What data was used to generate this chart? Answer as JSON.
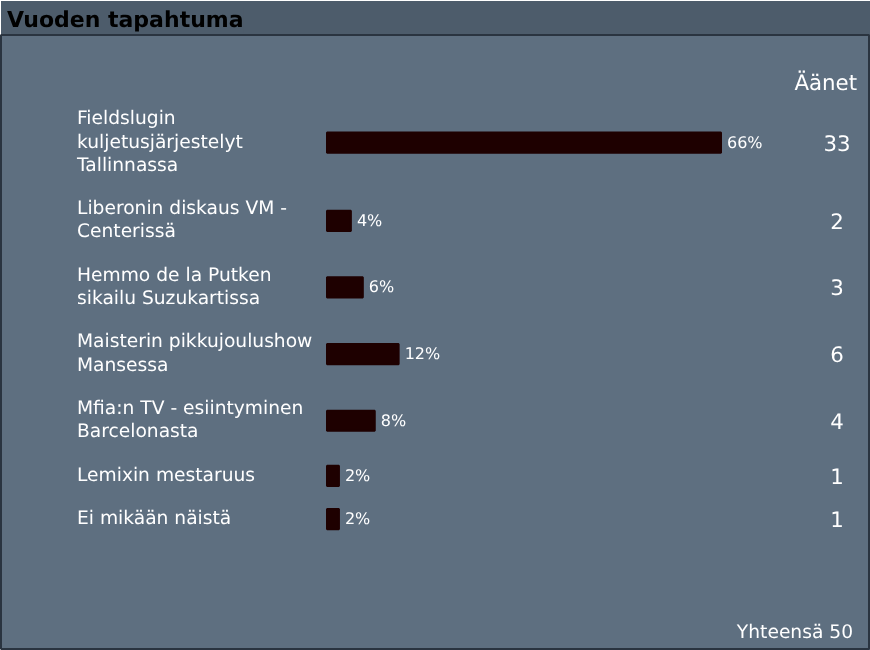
{
  "chart_data": {
    "type": "bar",
    "orientation": "horizontal",
    "title": "Vuoden tapahtuma",
    "categories": [
      "Fieldslugin kuljetusjärjestelyt Tallinnassa",
      "Liberonin diskaus VM - Centerissä",
      "Hemmo de la Putken sikailu Suzukartissa",
      "Maisterin pikkujoulushow Mansessa",
      "Mfia:n TV - esiintyminen Barcelonasta",
      "Lemixin mestaruus",
      "Ei mikään näistä"
    ],
    "values": [
      66,
      4,
      6,
      12,
      8,
      2,
      2
    ],
    "value_labels": [
      "66%",
      "4%",
      "6%",
      "12%",
      "8%",
      "2%",
      "2%"
    ],
    "color": "#1e0000",
    "annotations": [
      "Äänet",
      "33",
      "2",
      "3",
      "6",
      "4",
      "1",
      "1",
      "Yhteensä 50"
    ]
  }
}
